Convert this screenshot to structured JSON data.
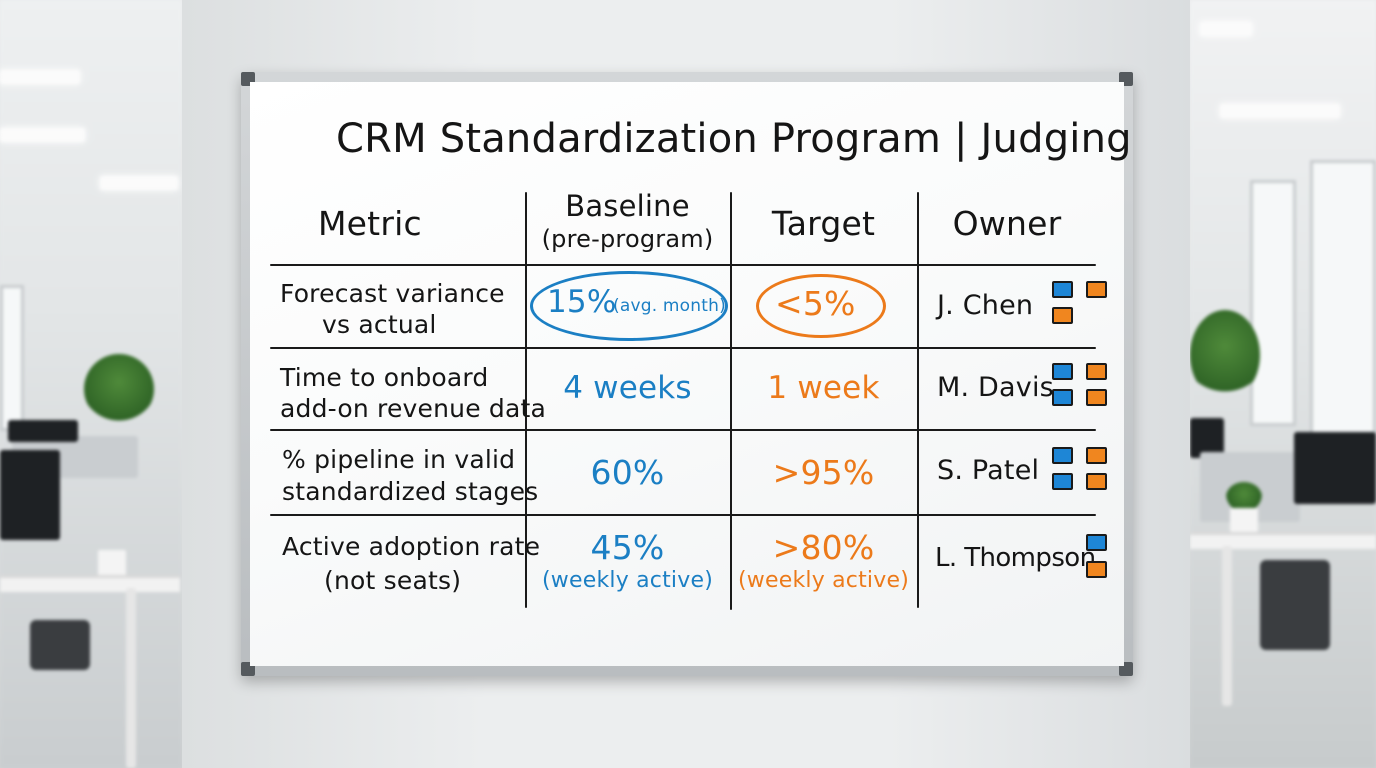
{
  "board": {
    "title": "CRM Standardization Program | Judging",
    "headers": {
      "metric": "Metric",
      "baseline": "Baseline",
      "baseline_note": "(pre-program)",
      "target": "Target",
      "owner": "Owner"
    },
    "rows": [
      {
        "metric_line1": "Forecast variance",
        "metric_line2": "vs actual",
        "baseline": "15%",
        "baseline_note": "(avg. month)",
        "target": "<5%",
        "target_note": "",
        "owner": "J. Chen"
      },
      {
        "metric_line1": "Time to onboard",
        "metric_line2": "add-on revenue data",
        "baseline": "4 weeks",
        "baseline_note": "",
        "target": "1 week",
        "target_note": "",
        "owner": "M. Davis"
      },
      {
        "metric_line1": "% pipeline in valid",
        "metric_line2": "standardized stages",
        "baseline": "60%",
        "baseline_note": "",
        "target": ">95%",
        "target_note": "",
        "owner": "S. Patel"
      },
      {
        "metric_line1": "Active adoption rate",
        "metric_line2": "(not seats)",
        "baseline": "45%",
        "baseline_note": "(weekly active)",
        "target": ">80%",
        "target_note": "(weekly active)",
        "owner": "L. Thompson"
      }
    ]
  },
  "colors": {
    "baseline_ink": "#1b7fc4",
    "target_ink": "#ec7a1a",
    "magnet_blue": "#1e86d6",
    "magnet_orange": "#f0861f"
  }
}
